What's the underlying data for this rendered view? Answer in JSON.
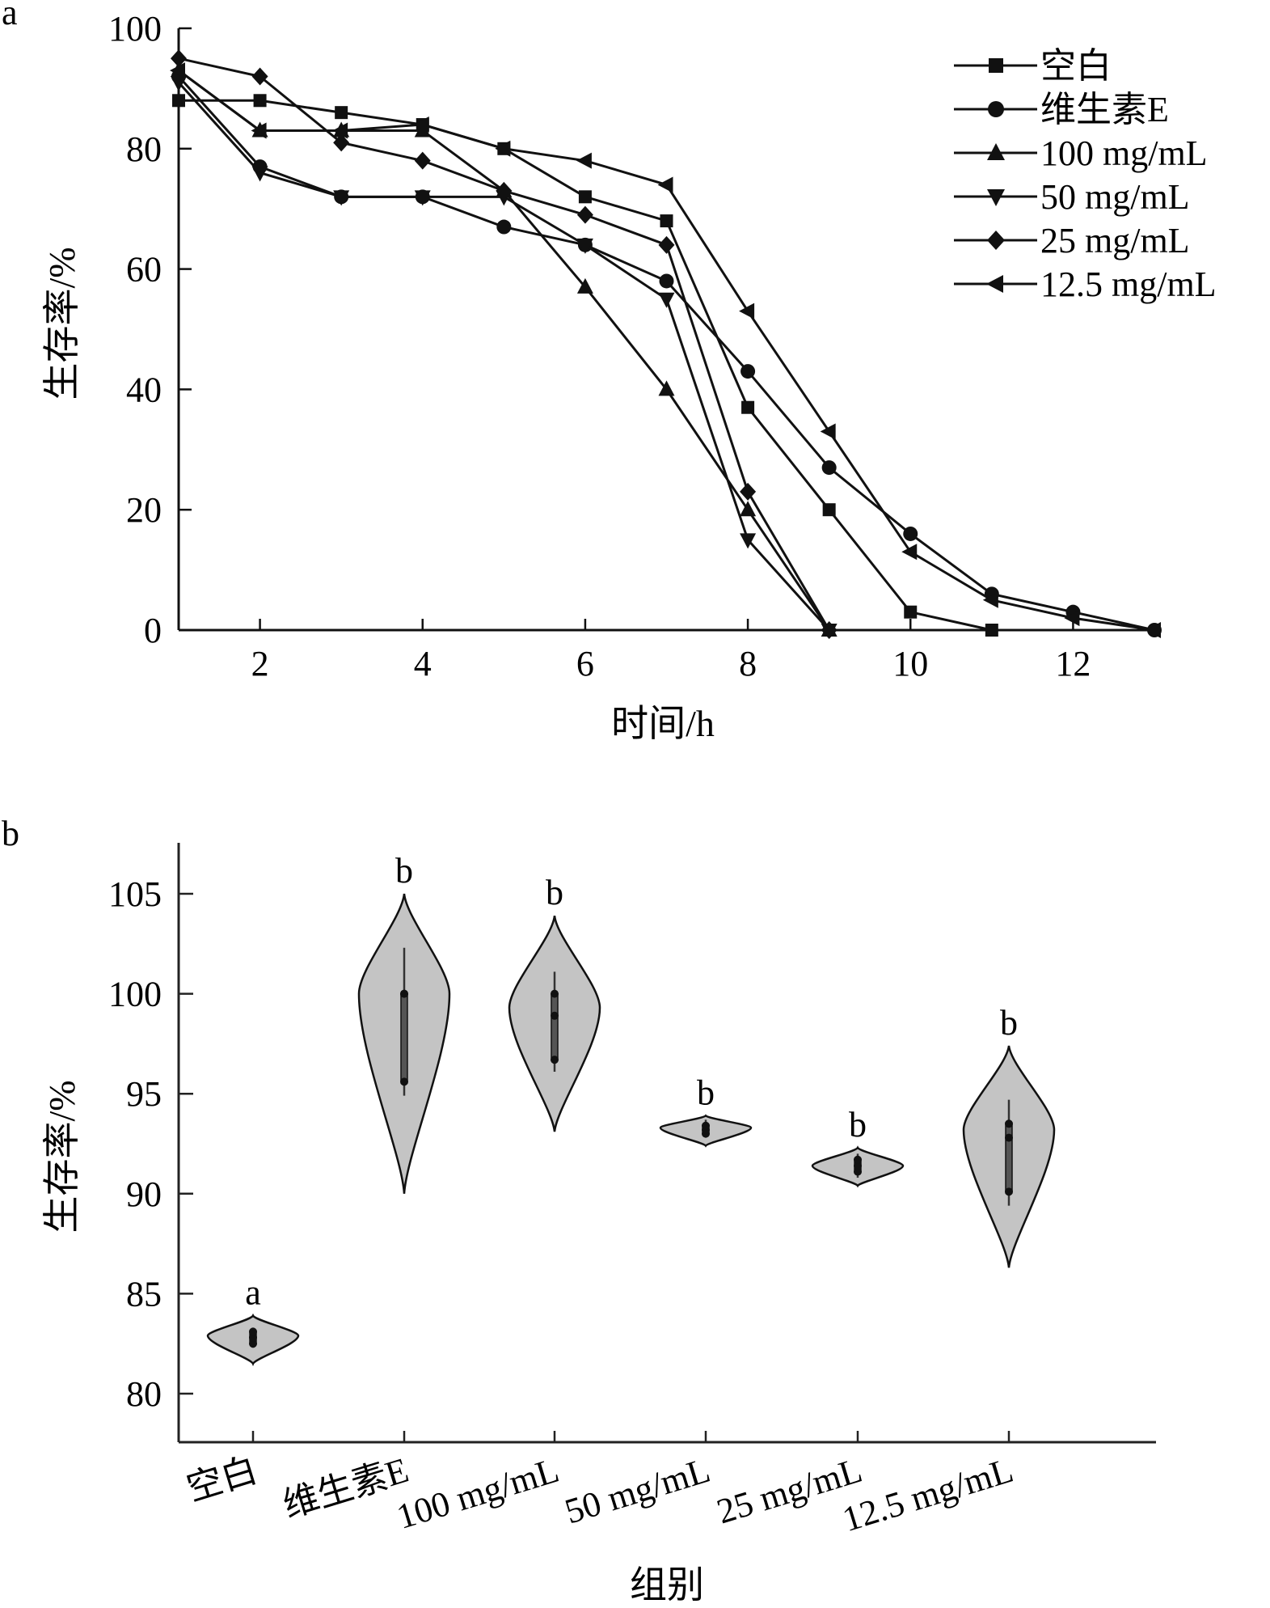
{
  "chart_data": [
    {
      "panel": "a",
      "type": "line",
      "title": "",
      "xlabel": "时间/h",
      "ylabel": "生存率/%",
      "xlim": [
        1,
        13
      ],
      "ylim": [
        0,
        100
      ],
      "xticks": [
        2,
        4,
        6,
        8,
        10,
        12
      ],
      "yticks": [
        0,
        20,
        40,
        60,
        80,
        100
      ],
      "grid": false,
      "legend_position": "top-right",
      "series": [
        {
          "name": "空白",
          "marker": "square",
          "x": [
            1,
            2,
            3,
            4,
            5,
            6,
            7,
            8,
            9,
            10,
            11
          ],
          "values": [
            88,
            88,
            86,
            84,
            80,
            72,
            68,
            37,
            20,
            3,
            0
          ]
        },
        {
          "name": "维生素E",
          "marker": "circle",
          "x": [
            1,
            2,
            3,
            4,
            5,
            6,
            7,
            8,
            9,
            10,
            11,
            12,
            13
          ],
          "values": [
            92,
            77,
            72,
            72,
            67,
            64,
            58,
            43,
            27,
            16,
            6,
            3,
            0
          ]
        },
        {
          "name": "100 mg/mL",
          "marker": "triangle-up",
          "x": [
            1,
            2,
            3,
            4,
            5,
            6,
            7,
            8,
            9
          ],
          "values": [
            93,
            83,
            83,
            83,
            73,
            57,
            40,
            20,
            0
          ]
        },
        {
          "name": "50 mg/mL",
          "marker": "triangle-down",
          "x": [
            1,
            2,
            3,
            4,
            5,
            6,
            7,
            8,
            9
          ],
          "values": [
            91,
            76,
            72,
            72,
            72,
            64,
            55,
            15,
            0
          ]
        },
        {
          "name": "25 mg/mL",
          "marker": "diamond",
          "x": [
            1,
            2,
            3,
            4,
            5,
            6,
            7,
            8,
            9
          ],
          "values": [
            95,
            92,
            81,
            78,
            73,
            69,
            64,
            23,
            0
          ]
        },
        {
          "name": "12.5 mg/mL",
          "marker": "triangle-left",
          "x": [
            1,
            2,
            3,
            4,
            5,
            6,
            7,
            8,
            9,
            10,
            11,
            12,
            13
          ],
          "values": [
            93,
            83,
            83,
            84,
            80,
            78,
            74,
            53,
            33,
            13,
            5,
            2,
            0
          ]
        }
      ]
    },
    {
      "panel": "b",
      "type": "violin",
      "title": "",
      "xlabel": "组别",
      "ylabel": "生存率/%",
      "ylim": [
        77.5,
        107.5
      ],
      "yticks": [
        80,
        85,
        90,
        95,
        100,
        105
      ],
      "grid": false,
      "fill_color": "#c4c4c4",
      "categories": [
        "空白",
        "维生素E",
        "100 mg/mL",
        "50 mg/mL",
        "25 mg/mL",
        "12.5 mg/mL"
      ],
      "groups": [
        {
          "name": "空白",
          "letter": "a",
          "min": 81.5,
          "max": 83.9,
          "mode": 82.9,
          "points": [
            82.5,
            82.8,
            83.1
          ],
          "whisker": [
            82.3,
            83.3
          ]
        },
        {
          "name": "维生素E",
          "letter": "b",
          "min": 90.0,
          "max": 105.0,
          "mode": 100.0,
          "points": [
            95.6,
            100.0,
            100.0
          ],
          "whisker": [
            94.9,
            102.3
          ]
        },
        {
          "name": "100 mg/mL",
          "letter": "b",
          "min": 93.1,
          "max": 103.9,
          "mode": 99.3,
          "points": [
            96.7,
            98.9,
            100.0
          ],
          "whisker": [
            96.1,
            101.1
          ]
        },
        {
          "name": "50 mg/mL",
          "letter": "b",
          "min": 92.4,
          "max": 93.9,
          "mode": 93.3,
          "points": [
            93.0,
            93.2,
            93.4
          ],
          "whisker": [
            92.8,
            93.7
          ]
        },
        {
          "name": "25 mg/mL",
          "letter": "b",
          "min": 90.4,
          "max": 92.3,
          "mode": 91.4,
          "points": [
            91.1,
            91.4,
            91.7
          ],
          "whisker": [
            90.8,
            92.0
          ]
        },
        {
          "name": "12.5 mg/mL",
          "letter": "b",
          "min": 86.3,
          "max": 97.4,
          "mode": 93.2,
          "points": [
            90.1,
            92.8,
            93.5
          ],
          "whisker": [
            89.4,
            94.7
          ]
        }
      ]
    }
  ],
  "panel_labels": {
    "a": "a",
    "b": "b"
  }
}
